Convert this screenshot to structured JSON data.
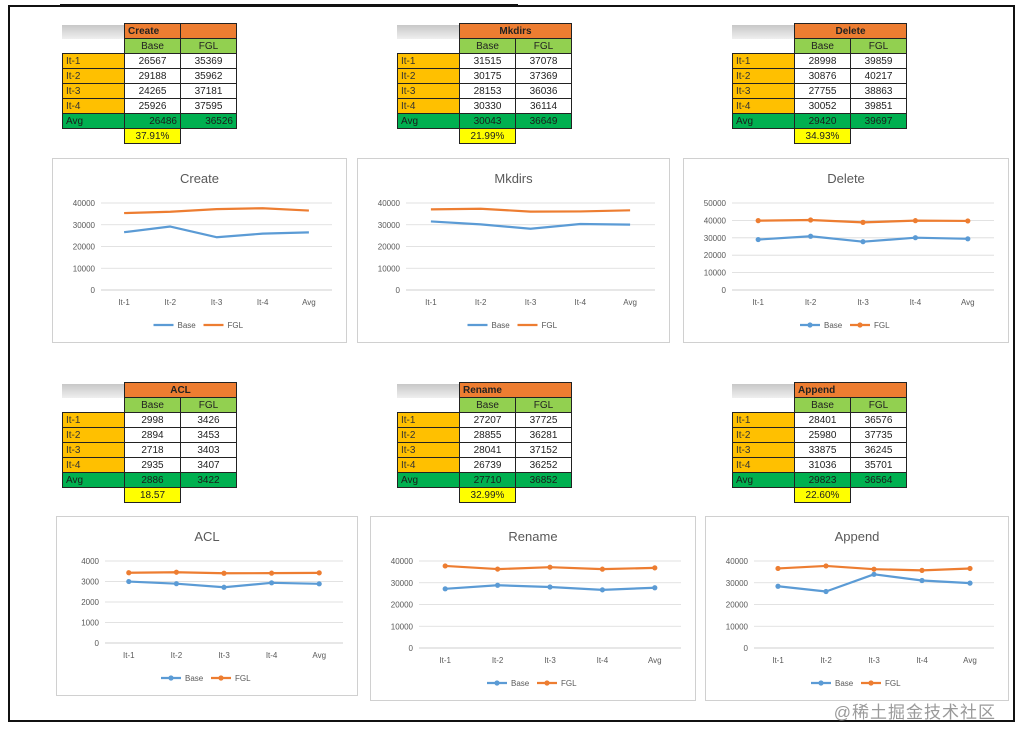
{
  "colors": {
    "base": "#5b9bd5",
    "fgl": "#ed7d31",
    "title": "#ed7d31",
    "header": "#92d050",
    "label": "#ffc000",
    "avg": "#00b050",
    "pct": "#ffff00"
  },
  "watermark": "@稀土掘金技术社区",
  "charts": [
    {
      "name": "create",
      "type": "line",
      "title": "Create",
      "col_headers": [
        "Base",
        "FGL"
      ],
      "categories": [
        "It-1",
        "It-2",
        "It-3",
        "It-4",
        "Avg"
      ],
      "series": [
        {
          "name": "Base",
          "values": [
            26567,
            29188,
            24265,
            25926,
            26486
          ]
        },
        {
          "name": "FGL",
          "values": [
            35369,
            35962,
            37181,
            37595,
            36526
          ]
        }
      ],
      "avg_display": [
        "26486",
        "36526"
      ],
      "improvement": "37.91%",
      "ylim": [
        0,
        40000
      ],
      "yticks": [
        "0",
        "10000",
        "20000",
        "30000",
        "40000"
      ],
      "markers": false
    },
    {
      "name": "mkdirs",
      "type": "line",
      "title": "Mkdirs",
      "col_headers": [
        "Base",
        "FGL"
      ],
      "categories": [
        "It-1",
        "It-2",
        "It-3",
        "It-4",
        "Avg"
      ],
      "series": [
        {
          "name": "Base",
          "values": [
            31515,
            30175,
            28153,
            30330,
            30043
          ]
        },
        {
          "name": "FGL",
          "values": [
            37078,
            37369,
            36036,
            36114,
            36649
          ]
        }
      ],
      "avg_display": [
        "30043",
        "36649"
      ],
      "improvement": "21.99%",
      "ylim": [
        0,
        40000
      ],
      "yticks": [
        "0",
        "10000",
        "20000",
        "30000",
        "40000"
      ],
      "markers": false
    },
    {
      "name": "delete",
      "type": "line",
      "title": "Delete",
      "col_headers": [
        "Base",
        "FGL"
      ],
      "categories": [
        "It-1",
        "It-2",
        "It-3",
        "It-4",
        "Avg"
      ],
      "series": [
        {
          "name": "Base",
          "values": [
            28998,
            30876,
            27755,
            30052,
            29420
          ]
        },
        {
          "name": "FGL",
          "values": [
            39859,
            40217,
            38863,
            39851,
            39697
          ]
        }
      ],
      "avg_display": [
        "29420",
        "39697"
      ],
      "improvement": "34.93%",
      "ylim": [
        0,
        50000
      ],
      "yticks": [
        "0",
        "10000",
        "20000",
        "30000",
        "40000",
        "50000"
      ],
      "markers": true
    },
    {
      "name": "acl",
      "type": "line",
      "title": "ACL",
      "col_headers": [
        "Base",
        "FGL"
      ],
      "categories": [
        "It-1",
        "It-2",
        "It-3",
        "It-4",
        "Avg"
      ],
      "series": [
        {
          "name": "Base",
          "values": [
            2998,
            2894,
            2718,
            2935,
            2886
          ]
        },
        {
          "name": "FGL",
          "values": [
            3426,
            3453,
            3403,
            3407,
            3422
          ]
        }
      ],
      "avg_display": [
        "2886",
        "3422"
      ],
      "improvement": "18.57",
      "ylim": [
        0,
        4000
      ],
      "yticks": [
        "0",
        "1000",
        "2000",
        "3000",
        "4000"
      ],
      "markers": true
    },
    {
      "name": "rename",
      "type": "line",
      "title": "Rename",
      "col_headers": [
        "Base",
        "FGL"
      ],
      "categories": [
        "It-1",
        "It-2",
        "It-3",
        "It-4",
        "Avg"
      ],
      "series": [
        {
          "name": "Base",
          "values": [
            27207,
            28855,
            28041,
            26739,
            27710
          ]
        },
        {
          "name": "FGL",
          "values": [
            37725,
            36281,
            37152,
            36252,
            36852
          ]
        }
      ],
      "avg_display": [
        "27710",
        "36852"
      ],
      "improvement": "32.99%",
      "ylim": [
        0,
        40000
      ],
      "yticks": [
        "0",
        "10000",
        "20000",
        "30000",
        "40000"
      ],
      "markers": true
    },
    {
      "name": "append",
      "type": "line",
      "title": "Append",
      "col_headers": [
        "Base",
        "FGL"
      ],
      "categories": [
        "It-1",
        "It-2",
        "It-3",
        "It-4",
        "Avg"
      ],
      "series": [
        {
          "name": "Base",
          "values": [
            28401,
            25980,
            33875,
            31036,
            29823
          ]
        },
        {
          "name": "FGL",
          "values": [
            36576,
            37735,
            36245,
            35701,
            36564
          ]
        }
      ],
      "avg_display": [
        "29823",
        "36564"
      ],
      "improvement": "22.60%",
      "ylim": [
        0,
        40000
      ],
      "yticks": [
        "0",
        "10000",
        "20000",
        "30000",
        "40000"
      ],
      "markers": true
    }
  ]
}
